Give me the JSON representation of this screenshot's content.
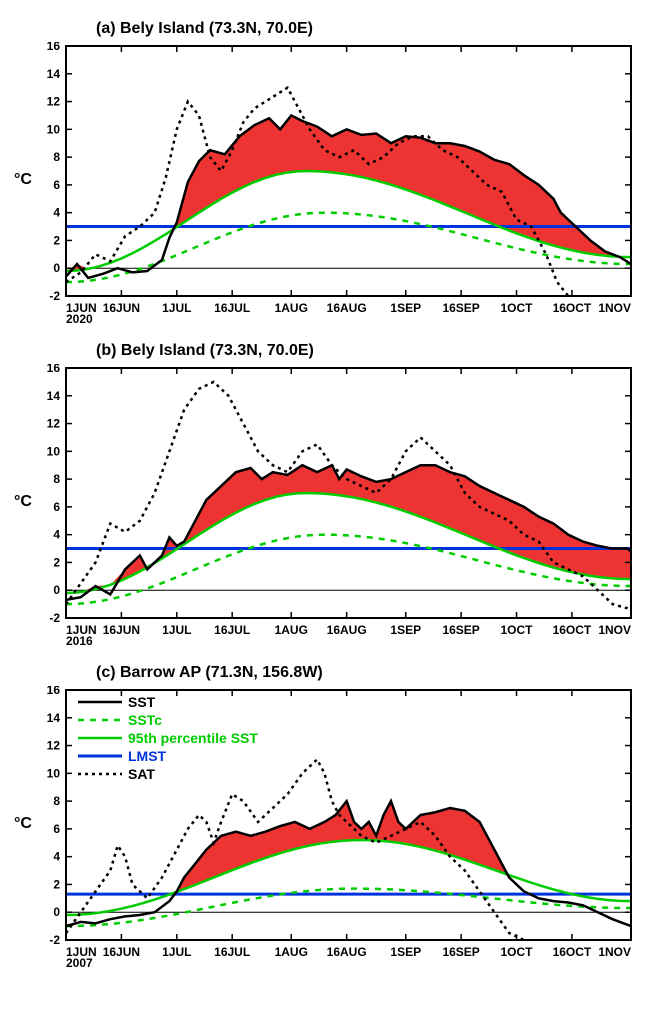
{
  "chart_common": {
    "type": "line",
    "ylim": [
      -2,
      16
    ],
    "ytick_step": 2,
    "yticks": [
      -2,
      0,
      2,
      4,
      6,
      8,
      10,
      12,
      14,
      16
    ],
    "xlim_days": [
      0,
      153
    ],
    "xticks_days": [
      0,
      15,
      30,
      45,
      61,
      76,
      92,
      107,
      122,
      137,
      153
    ],
    "xtick_labels": [
      "1JUN",
      "16JUN",
      "1JUL",
      "16JUL",
      "1AUG",
      "16AUG",
      "1SEP",
      "16SEP",
      "1OCT",
      "16OCT",
      "1NOV"
    ],
    "ylabel": "°C",
    "colors": {
      "sst": "#000000",
      "sstc": "#00cc00",
      "p95": "#00cc00",
      "lmst": "#0033dd",
      "sat": "#000000",
      "fill": "#ee3333",
      "background": "#ffffff",
      "axis": "#000000"
    },
    "line_widths": {
      "sst": 2.5,
      "sstc": 2.5,
      "p95": 2.5,
      "lmst": 3,
      "sat": 2.5,
      "axis": 2,
      "zero": 1
    },
    "dash": {
      "sstc": "6,6",
      "sat": "3,4"
    },
    "label_fontsize": 12,
    "title_fontsize": 16,
    "aspect_w": 565,
    "aspect_h": 250,
    "legend": {
      "position": "upper-left-inside",
      "entries": [
        {
          "label": "SST",
          "stroke": "#000000",
          "dash": null,
          "weight": 2.5
        },
        {
          "label": "SSTc",
          "stroke": "#00cc00",
          "dash": "6,6",
          "weight": 2.5
        },
        {
          "label": "95th percentile SST",
          "stroke": "#00cc00",
          "dash": null,
          "weight": 2.5
        },
        {
          "label": "LMST",
          "stroke": "#0033dd",
          "dash": null,
          "weight": 3
        },
        {
          "label": "SAT",
          "stroke": "#000000",
          "dash": "3,4",
          "weight": 2.5
        }
      ]
    }
  },
  "panels": [
    {
      "id": "a",
      "title": "(a) Bely Island (73.3N, 70.0E)",
      "year": "2020",
      "show_legend": false,
      "lmst": 3.0,
      "sstc_peak": 4.0,
      "sstc_peak_day": 70,
      "p95_peak": 7.0,
      "p95_peak_day": 65,
      "sst": [
        [
          0,
          -0.6
        ],
        [
          3,
          0.3
        ],
        [
          6,
          -0.7
        ],
        [
          10,
          -0.4
        ],
        [
          14,
          0.0
        ],
        [
          18,
          -0.3
        ],
        [
          22,
          -0.2
        ],
        [
          26,
          0.6
        ],
        [
          28,
          2.2
        ],
        [
          30,
          3.3
        ],
        [
          33,
          6.2
        ],
        [
          36,
          7.7
        ],
        [
          39,
          8.5
        ],
        [
          43,
          8.2
        ],
        [
          47,
          9.5
        ],
        [
          51,
          10.3
        ],
        [
          55,
          10.8
        ],
        [
          58,
          10.0
        ],
        [
          61,
          11.0
        ],
        [
          64,
          10.6
        ],
        [
          68,
          10.2
        ],
        [
          72,
          9.5
        ],
        [
          76,
          10.0
        ],
        [
          80,
          9.6
        ],
        [
          84,
          9.7
        ],
        [
          88,
          9.0
        ],
        [
          92,
          9.5
        ],
        [
          96,
          9.4
        ],
        [
          100,
          9.0
        ],
        [
          104,
          9.0
        ],
        [
          108,
          8.8
        ],
        [
          112,
          8.4
        ],
        [
          116,
          7.8
        ],
        [
          120,
          7.5
        ],
        [
          124,
          6.7
        ],
        [
          128,
          6.0
        ],
        [
          132,
          5.0
        ],
        [
          134,
          4.0
        ],
        [
          136,
          3.5
        ],
        [
          138,
          3.0
        ],
        [
          142,
          2.0
        ],
        [
          146,
          1.2
        ],
        [
          150,
          0.8
        ],
        [
          153,
          0.3
        ]
      ],
      "sat": [
        [
          0,
          -1.0
        ],
        [
          4,
          -0.3
        ],
        [
          8,
          1.0
        ],
        [
          12,
          0.5
        ],
        [
          16,
          2.3
        ],
        [
          20,
          3.0
        ],
        [
          24,
          4.0
        ],
        [
          27,
          6.5
        ],
        [
          30,
          10.0
        ],
        [
          33,
          12.0
        ],
        [
          36,
          11.0
        ],
        [
          39,
          8.0
        ],
        [
          42,
          7.0
        ],
        [
          45,
          8.5
        ],
        [
          48,
          10.5
        ],
        [
          51,
          11.5
        ],
        [
          54,
          12.0
        ],
        [
          57,
          12.5
        ],
        [
          60,
          13.0
        ],
        [
          63,
          11.5
        ],
        [
          66,
          10.0
        ],
        [
          70,
          8.5
        ],
        [
          74,
          8.0
        ],
        [
          78,
          8.5
        ],
        [
          82,
          7.5
        ],
        [
          86,
          8.0
        ],
        [
          90,
          9.0
        ],
        [
          94,
          9.5
        ],
        [
          98,
          9.5
        ],
        [
          102,
          8.5
        ],
        [
          106,
          8.0
        ],
        [
          110,
          7.0
        ],
        [
          114,
          6.0
        ],
        [
          118,
          5.5
        ],
        [
          122,
          3.5
        ],
        [
          126,
          3.0
        ],
        [
          130,
          1.0
        ],
        [
          133,
          -1.0
        ],
        [
          136,
          -2.0
        ]
      ]
    },
    {
      "id": "b",
      "title": "(b) Bely Island (73.3N, 70.0E)",
      "year": "2016",
      "show_legend": false,
      "lmst": 3.0,
      "sstc_peak": 4.0,
      "sstc_peak_day": 70,
      "p95_peak": 7.0,
      "p95_peak_day": 65,
      "sst": [
        [
          0,
          -0.7
        ],
        [
          4,
          -0.5
        ],
        [
          8,
          0.3
        ],
        [
          12,
          -0.3
        ],
        [
          16,
          1.5
        ],
        [
          20,
          2.5
        ],
        [
          22,
          1.5
        ],
        [
          24,
          2.0
        ],
        [
          26,
          2.5
        ],
        [
          28,
          3.8
        ],
        [
          30,
          3.2
        ],
        [
          32,
          3.5
        ],
        [
          35,
          5.0
        ],
        [
          38,
          6.5
        ],
        [
          42,
          7.5
        ],
        [
          46,
          8.5
        ],
        [
          50,
          8.8
        ],
        [
          53,
          8.0
        ],
        [
          56,
          8.5
        ],
        [
          60,
          8.3
        ],
        [
          64,
          9.0
        ],
        [
          68,
          8.5
        ],
        [
          72,
          9.0
        ],
        [
          74,
          8.0
        ],
        [
          76,
          8.7
        ],
        [
          80,
          8.2
        ],
        [
          84,
          7.8
        ],
        [
          88,
          8.0
        ],
        [
          92,
          8.5
        ],
        [
          96,
          9.0
        ],
        [
          100,
          9.0
        ],
        [
          104,
          8.5
        ],
        [
          108,
          8.2
        ],
        [
          112,
          7.5
        ],
        [
          116,
          7.0
        ],
        [
          120,
          6.5
        ],
        [
          124,
          6.0
        ],
        [
          128,
          5.3
        ],
        [
          132,
          4.8
        ],
        [
          136,
          4.0
        ],
        [
          140,
          3.5
        ],
        [
          144,
          3.2
        ],
        [
          148,
          3.0
        ],
        [
          152,
          3.0
        ],
        [
          153,
          2.8
        ]
      ],
      "sat": [
        [
          0,
          -1.0
        ],
        [
          4,
          0.5
        ],
        [
          8,
          2.0
        ],
        [
          12,
          4.8
        ],
        [
          16,
          4.2
        ],
        [
          20,
          5.0
        ],
        [
          24,
          7.0
        ],
        [
          28,
          10.0
        ],
        [
          32,
          13.0
        ],
        [
          36,
          14.5
        ],
        [
          40,
          15.0
        ],
        [
          44,
          14.0
        ],
        [
          48,
          12.0
        ],
        [
          52,
          10.0
        ],
        [
          56,
          9.0
        ],
        [
          60,
          8.5
        ],
        [
          64,
          10.0
        ],
        [
          68,
          10.5
        ],
        [
          72,
          9.0
        ],
        [
          76,
          8.0
        ],
        [
          80,
          7.5
        ],
        [
          84,
          7.0
        ],
        [
          88,
          8.0
        ],
        [
          92,
          10.0
        ],
        [
          96,
          11.0
        ],
        [
          100,
          10.0
        ],
        [
          104,
          9.0
        ],
        [
          108,
          7.0
        ],
        [
          112,
          6.0
        ],
        [
          116,
          5.5
        ],
        [
          120,
          5.0
        ],
        [
          124,
          4.0
        ],
        [
          128,
          3.5
        ],
        [
          132,
          2.0
        ],
        [
          136,
          1.5
        ],
        [
          140,
          1.0
        ],
        [
          144,
          0.0
        ],
        [
          148,
          -1.0
        ],
        [
          152,
          -1.3
        ],
        [
          153,
          -1.5
        ]
      ]
    },
    {
      "id": "c",
      "title": "(c) Barrow AP (71.3N, 156.8W)",
      "year": "2007",
      "show_legend": true,
      "lmst": 1.3,
      "sstc_peak": 1.7,
      "sstc_peak_day": 78,
      "p95_peak": 5.2,
      "p95_peak_day": 80,
      "sst": [
        [
          0,
          -1.0
        ],
        [
          4,
          -0.7
        ],
        [
          8,
          -0.8
        ],
        [
          12,
          -0.5
        ],
        [
          16,
          -0.3
        ],
        [
          20,
          -0.2
        ],
        [
          24,
          0.0
        ],
        [
          28,
          0.8
        ],
        [
          30,
          1.5
        ],
        [
          32,
          2.5
        ],
        [
          35,
          3.5
        ],
        [
          38,
          4.5
        ],
        [
          42,
          5.5
        ],
        [
          46,
          5.8
        ],
        [
          50,
          5.5
        ],
        [
          54,
          5.8
        ],
        [
          58,
          6.2
        ],
        [
          62,
          6.5
        ],
        [
          66,
          6.0
        ],
        [
          70,
          6.5
        ],
        [
          73,
          7.0
        ],
        [
          76,
          8.0
        ],
        [
          78,
          6.5
        ],
        [
          80,
          6.0
        ],
        [
          82,
          6.5
        ],
        [
          84,
          5.5
        ],
        [
          86,
          7.0
        ],
        [
          88,
          8.0
        ],
        [
          90,
          6.5
        ],
        [
          92,
          6.0
        ],
        [
          94,
          6.5
        ],
        [
          96,
          7.0
        ],
        [
          100,
          7.2
        ],
        [
          104,
          7.5
        ],
        [
          108,
          7.3
        ],
        [
          112,
          6.5
        ],
        [
          114,
          5.5
        ],
        [
          116,
          4.5
        ],
        [
          118,
          3.5
        ],
        [
          120,
          2.5
        ],
        [
          124,
          1.5
        ],
        [
          128,
          1.0
        ],
        [
          132,
          0.8
        ],
        [
          136,
          0.7
        ],
        [
          140,
          0.5
        ],
        [
          144,
          0.0
        ],
        [
          148,
          -0.5
        ],
        [
          153,
          -1.0
        ]
      ],
      "sat": [
        [
          0,
          -1.5
        ],
        [
          4,
          0.0
        ],
        [
          8,
          1.5
        ],
        [
          12,
          3.0
        ],
        [
          14,
          4.8
        ],
        [
          16,
          4.0
        ],
        [
          18,
          2.0
        ],
        [
          22,
          1.0
        ],
        [
          26,
          2.5
        ],
        [
          30,
          4.5
        ],
        [
          33,
          6.0
        ],
        [
          36,
          7.0
        ],
        [
          38,
          6.5
        ],
        [
          40,
          5.0
        ],
        [
          42,
          6.5
        ],
        [
          45,
          8.5
        ],
        [
          48,
          8.0
        ],
        [
          52,
          6.5
        ],
        [
          56,
          7.5
        ],
        [
          60,
          8.5
        ],
        [
          64,
          10.0
        ],
        [
          68,
          11.0
        ],
        [
          70,
          10.0
        ],
        [
          72,
          8.0
        ],
        [
          74,
          7.0
        ],
        [
          76,
          6.5
        ],
        [
          80,
          5.5
        ],
        [
          84,
          5.0
        ],
        [
          88,
          5.5
        ],
        [
          92,
          6.0
        ],
        [
          96,
          6.5
        ],
        [
          100,
          5.5
        ],
        [
          104,
          4.0
        ],
        [
          108,
          3.0
        ],
        [
          112,
          1.5
        ],
        [
          116,
          0.0
        ],
        [
          120,
          -1.5
        ],
        [
          124,
          -2.0
        ]
      ]
    }
  ]
}
